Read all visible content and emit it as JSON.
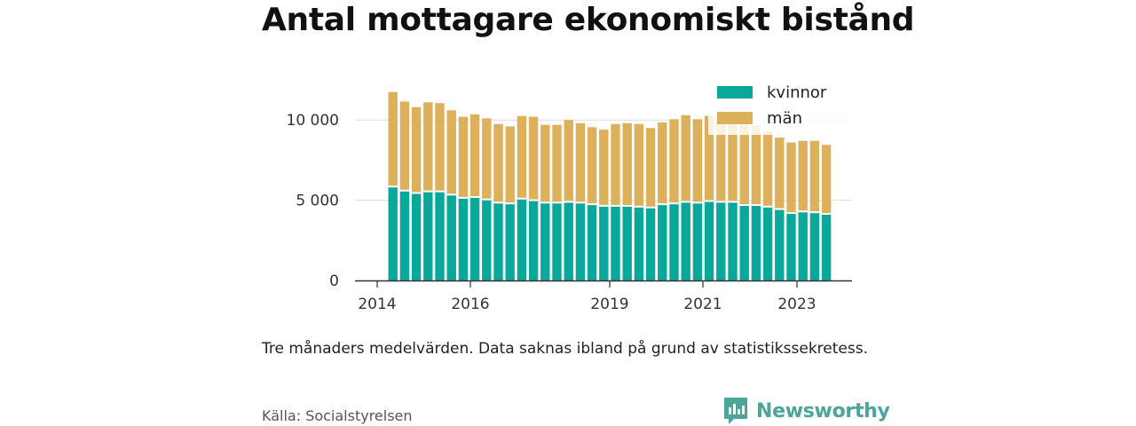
{
  "title": "Antal mottagare ekonomiskt bistånd",
  "note": "Tre månaders medelvärden. Data saknas ibland på grund av statistikssekretess.",
  "source": "Källa: Socialstyrelsen",
  "brand": {
    "name": "Newsworthy",
    "icon": "newsworthy-logo-icon"
  },
  "colors": {
    "kvinnor": "#0aa89a",
    "man": "#ddb05c",
    "axis": "#333333",
    "grid": "#dddddd"
  },
  "chart_data": {
    "type": "bar",
    "stacked": true,
    "x_tick_labels": [
      "2014",
      "2016",
      "2019",
      "2021",
      "2023"
    ],
    "y_ticks": [
      0,
      5000,
      10000
    ],
    "y_tick_labels": [
      "0",
      "5 000",
      "10 000"
    ],
    "ylim": [
      0,
      12500
    ],
    "grid": true,
    "legend_position": "top-right",
    "series": [
      {
        "name": "kvinnor",
        "color": "#0aa89a",
        "values": [
          5850,
          5600,
          5450,
          5550,
          5550,
          5350,
          5150,
          5200,
          5050,
          4850,
          4800,
          5100,
          5000,
          4850,
          4850,
          4900,
          4850,
          4750,
          4650,
          4650,
          4650,
          4600,
          4550,
          4750,
          4800,
          4900,
          4850,
          4950,
          4900,
          4900,
          4700,
          4700,
          4600,
          4450,
          4200,
          4300,
          4250,
          4150
        ]
      },
      {
        "name": "män",
        "color": "#ddb05c",
        "values": [
          5900,
          5550,
          5350,
          5550,
          5500,
          5250,
          5050,
          5150,
          5050,
          4900,
          4800,
          5150,
          5200,
          4850,
          4850,
          5100,
          4950,
          4800,
          4750,
          5100,
          5150,
          5150,
          4950,
          5100,
          5250,
          5400,
          5200,
          5300,
          5200,
          4950,
          5000,
          4950,
          4700,
          4450,
          4400,
          4400,
          4450,
          4300
        ]
      }
    ],
    "xlabel": "",
    "ylabel": ""
  }
}
